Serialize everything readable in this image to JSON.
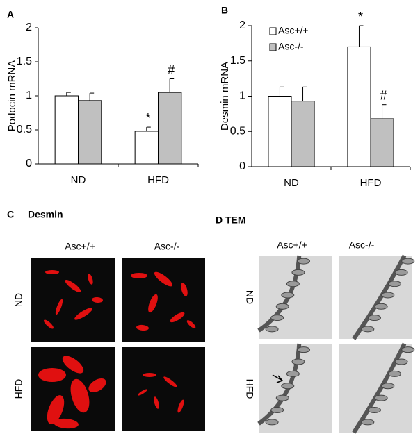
{
  "chart_data": [
    {
      "type": "bar",
      "panel": "A",
      "ylabel": "Podocin mRNA",
      "categories": [
        "ND",
        "HFD"
      ],
      "ylim": [
        0,
        2
      ],
      "yticks": [
        0,
        0.5,
        1,
        1.5,
        2
      ],
      "series": [
        {
          "name": "Asc+/+",
          "color": "#ffffff",
          "values": [
            1.0,
            0.48
          ],
          "errors": [
            0.05,
            0.06
          ],
          "annotations": [
            null,
            "*"
          ]
        },
        {
          "name": "Asc-/-",
          "color": "#c0c0c0",
          "values": [
            0.93,
            1.05
          ],
          "errors": [
            0.11,
            0.2
          ],
          "annotations": [
            null,
            "#"
          ]
        }
      ],
      "legend": false
    },
    {
      "type": "bar",
      "panel": "B",
      "ylabel": "Desmin mRNA",
      "categories": [
        "ND",
        "HFD"
      ],
      "ylim": [
        0,
        2
      ],
      "yticks": [
        0,
        0.5,
        1,
        1.5,
        2
      ],
      "series": [
        {
          "name": "Asc+/+",
          "color": "#ffffff",
          "values": [
            1.0,
            1.7
          ],
          "errors": [
            0.13,
            0.3
          ],
          "annotations": [
            null,
            "*"
          ]
        },
        {
          "name": "Asc-/-",
          "color": "#c0c0c0",
          "values": [
            0.93,
            0.68
          ],
          "errors": [
            0.2,
            0.2
          ],
          "annotations": [
            null,
            "#"
          ]
        }
      ],
      "legend": true
    }
  ],
  "panel_c": {
    "label": "C",
    "title": "Desmin",
    "columns": [
      "Asc+/+",
      "Asc-/-"
    ],
    "rows": [
      "ND",
      "HFD"
    ]
  },
  "panel_d": {
    "title": "D TEM",
    "columns": [
      "Asc+/+",
      "Asc-/-"
    ],
    "rows": [
      "ND",
      "HFD"
    ]
  }
}
